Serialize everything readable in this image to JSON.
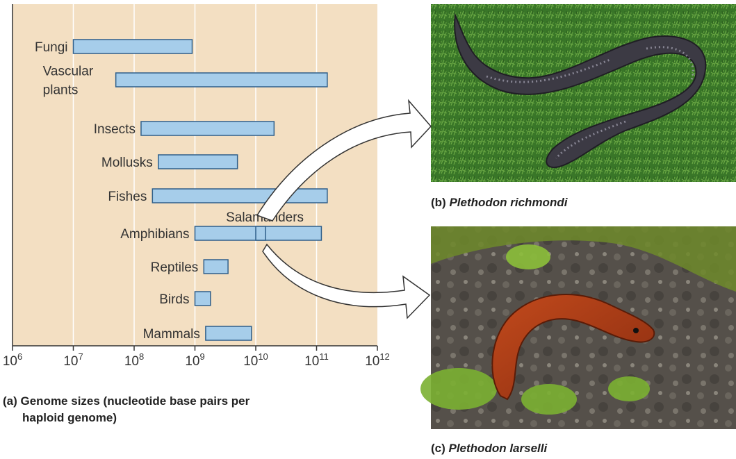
{
  "chart_data": {
    "type": "range-bar",
    "xscale": "log10",
    "xlim": [
      1000000,
      1000000000000
    ],
    "x_ticks": [
      {
        "value": 1000000,
        "base": "10",
        "exp": "6"
      },
      {
        "value": 10000000,
        "base": "10",
        "exp": "7"
      },
      {
        "value": 100000000,
        "base": "10",
        "exp": "8"
      },
      {
        "value": 1000000000,
        "base": "10",
        "exp": "9"
      },
      {
        "value": 10000000000,
        "base": "10",
        "exp": "10"
      },
      {
        "value": 100000000000,
        "base": "10",
        "exp": "11"
      },
      {
        "value": 1000000000000,
        "base": "10",
        "exp": "12"
      }
    ],
    "grid": true,
    "categories": [
      {
        "label_lines": [
          "Fungi"
        ],
        "min": 10000000,
        "max": 900000000
      },
      {
        "label_lines": [
          "Vascular",
          "plants"
        ],
        "min": 50000000,
        "max": 150000000000
      },
      {
        "label_lines": [
          "Insects"
        ],
        "min": 130000000,
        "max": 20000000000
      },
      {
        "label_lines": [
          "Mollusks"
        ],
        "min": 250000000,
        "max": 5000000000
      },
      {
        "label_lines": [
          "Fishes"
        ],
        "min": 200000000,
        "max": 150000000000
      },
      {
        "label_lines": [
          "Amphibians"
        ],
        "min": 1000000000,
        "max": 120000000000
      },
      {
        "label_lines": [
          "Reptiles"
        ],
        "min": 1400000000,
        "max": 3500000000
      },
      {
        "label_lines": [
          "Birds"
        ],
        "min": 1000000000,
        "max": 1800000000
      },
      {
        "label_lines": [
          "Mammals"
        ],
        "min": 1500000000,
        "max": 8500000000
      }
    ],
    "highlight": {
      "label": "Salamanders",
      "category": "Amphibians",
      "min": 10000000000,
      "max": 14500000000
    },
    "colors": {
      "background": "#f3dfc2",
      "bar_fill": "#a6cdea",
      "bar_stroke": "#2f5f8a",
      "grid": "#ffffff",
      "axis": "#333333"
    }
  },
  "captions": {
    "a_prefix": "(a) ",
    "a_line1": "Genome sizes (nucleotide base pairs per",
    "a_line2": "haploid genome)",
    "b_prefix": "(b) ",
    "b_name": "Plethodon richmondi",
    "c_prefix": "(c) ",
    "c_name": "Plethodon larselli"
  },
  "photos": {
    "b_subject": "dark-gray-salamander-on-moss",
    "c_subject": "orange-red-salamander-on-rock"
  }
}
